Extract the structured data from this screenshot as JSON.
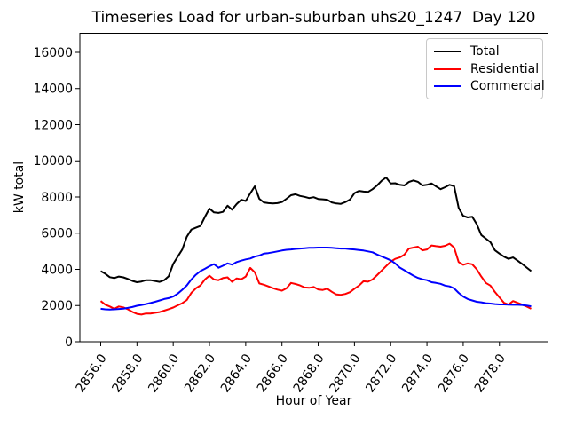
{
  "chart_data": {
    "type": "line",
    "title": "Timeseries Load for urban-suburban uhs20_1247  Day 120",
    "xlabel": "Hour of Year",
    "ylabel": "kW total",
    "grid": false,
    "legend_position": "upper right",
    "x_start": 2856.0,
    "x_step": 0.25,
    "x_end": 2879.75,
    "xlim": [
      2854.85,
      2880.68
    ],
    "ylim": [
      0,
      17055
    ],
    "xticks": {
      "values": [
        2856,
        2858,
        2860,
        2862,
        2864,
        2866,
        2868,
        2870,
        2872,
        2874,
        2876,
        2878
      ],
      "labels": [
        "2856.0",
        "2858.0",
        "2860.0",
        "2862.0",
        "2864.0",
        "2866.0",
        "2868.0",
        "2870.0",
        "2872.0",
        "2874.0",
        "2876.0",
        "2878.0"
      ]
    },
    "yticks": {
      "values": [
        0,
        2000,
        4000,
        6000,
        8000,
        10000,
        12000,
        14000,
        16000
      ],
      "labels": [
        "0",
        "2000",
        "4000",
        "6000",
        "8000",
        "10000",
        "12000",
        "14000",
        "16000"
      ]
    },
    "series": [
      {
        "name": "Total",
        "color": "#000000",
        "values": [
          3900,
          3760,
          3570,
          3520,
          3600,
          3560,
          3470,
          3360,
          3290,
          3330,
          3400,
          3400,
          3350,
          3310,
          3400,
          3620,
          4300,
          4700,
          5100,
          5800,
          6200,
          6300,
          6400,
          6900,
          7360,
          7150,
          7120,
          7180,
          7520,
          7300,
          7610,
          7850,
          7780,
          8200,
          8590,
          7900,
          7700,
          7660,
          7640,
          7660,
          7720,
          7900,
          8100,
          8150,
          8060,
          8010,
          7940,
          7990,
          7890,
          7870,
          7850,
          7700,
          7640,
          7620,
          7720,
          7860,
          8210,
          8340,
          8300,
          8280,
          8430,
          8640,
          8900,
          9080,
          8750,
          8760,
          8670,
          8640,
          8830,
          8920,
          8840,
          8640,
          8670,
          8750,
          8590,
          8430,
          8540,
          8670,
          8600,
          7400,
          6960,
          6870,
          6910,
          6500,
          5900,
          5700,
          5500,
          5050,
          4870,
          4700,
          4580,
          4660,
          4480,
          4300,
          4100,
          3900
        ]
      },
      {
        "name": "Residential",
        "color": "#ff0000",
        "values": [
          2250,
          2050,
          1950,
          1820,
          1950,
          1900,
          1790,
          1650,
          1540,
          1500,
          1560,
          1560,
          1600,
          1640,
          1720,
          1800,
          1890,
          2010,
          2130,
          2300,
          2700,
          2950,
          3110,
          3440,
          3650,
          3440,
          3400,
          3520,
          3560,
          3310,
          3500,
          3450,
          3600,
          4080,
          3840,
          3220,
          3150,
          3060,
          2960,
          2880,
          2820,
          2950,
          3250,
          3190,
          3110,
          3000,
          2980,
          3030,
          2890,
          2860,
          2930,
          2760,
          2610,
          2590,
          2640,
          2740,
          2930,
          3100,
          3340,
          3320,
          3440,
          3680,
          3930,
          4180,
          4420,
          4580,
          4660,
          4810,
          5150,
          5200,
          5250,
          5050,
          5100,
          5320,
          5280,
          5250,
          5300,
          5420,
          5200,
          4400,
          4250,
          4330,
          4280,
          4000,
          3600,
          3250,
          3100,
          2750,
          2450,
          2150,
          2050,
          2250,
          2150,
          2050,
          1950,
          1820
        ]
      },
      {
        "name": "Commercial",
        "color": "#0000ff",
        "values": [
          1820,
          1790,
          1780,
          1790,
          1810,
          1830,
          1870,
          1920,
          1990,
          2030,
          2080,
          2140,
          2210,
          2280,
          2360,
          2410,
          2500,
          2660,
          2870,
          3110,
          3440,
          3700,
          3900,
          4030,
          4170,
          4290,
          4090,
          4200,
          4330,
          4260,
          4400,
          4480,
          4550,
          4600,
          4700,
          4760,
          4870,
          4900,
          4940,
          4990,
          5040,
          5080,
          5100,
          5130,
          5150,
          5170,
          5190,
          5190,
          5200,
          5200,
          5200,
          5190,
          5170,
          5150,
          5150,
          5120,
          5100,
          5070,
          5040,
          4990,
          4940,
          4820,
          4710,
          4610,
          4500,
          4330,
          4100,
          3950,
          3800,
          3650,
          3530,
          3450,
          3400,
          3290,
          3250,
          3200,
          3100,
          3060,
          2950,
          2700,
          2500,
          2360,
          2280,
          2210,
          2180,
          2130,
          2110,
          2080,
          2060,
          2060,
          2050,
          2040,
          2040,
          2030,
          2000,
          1960
        ]
      }
    ]
  }
}
